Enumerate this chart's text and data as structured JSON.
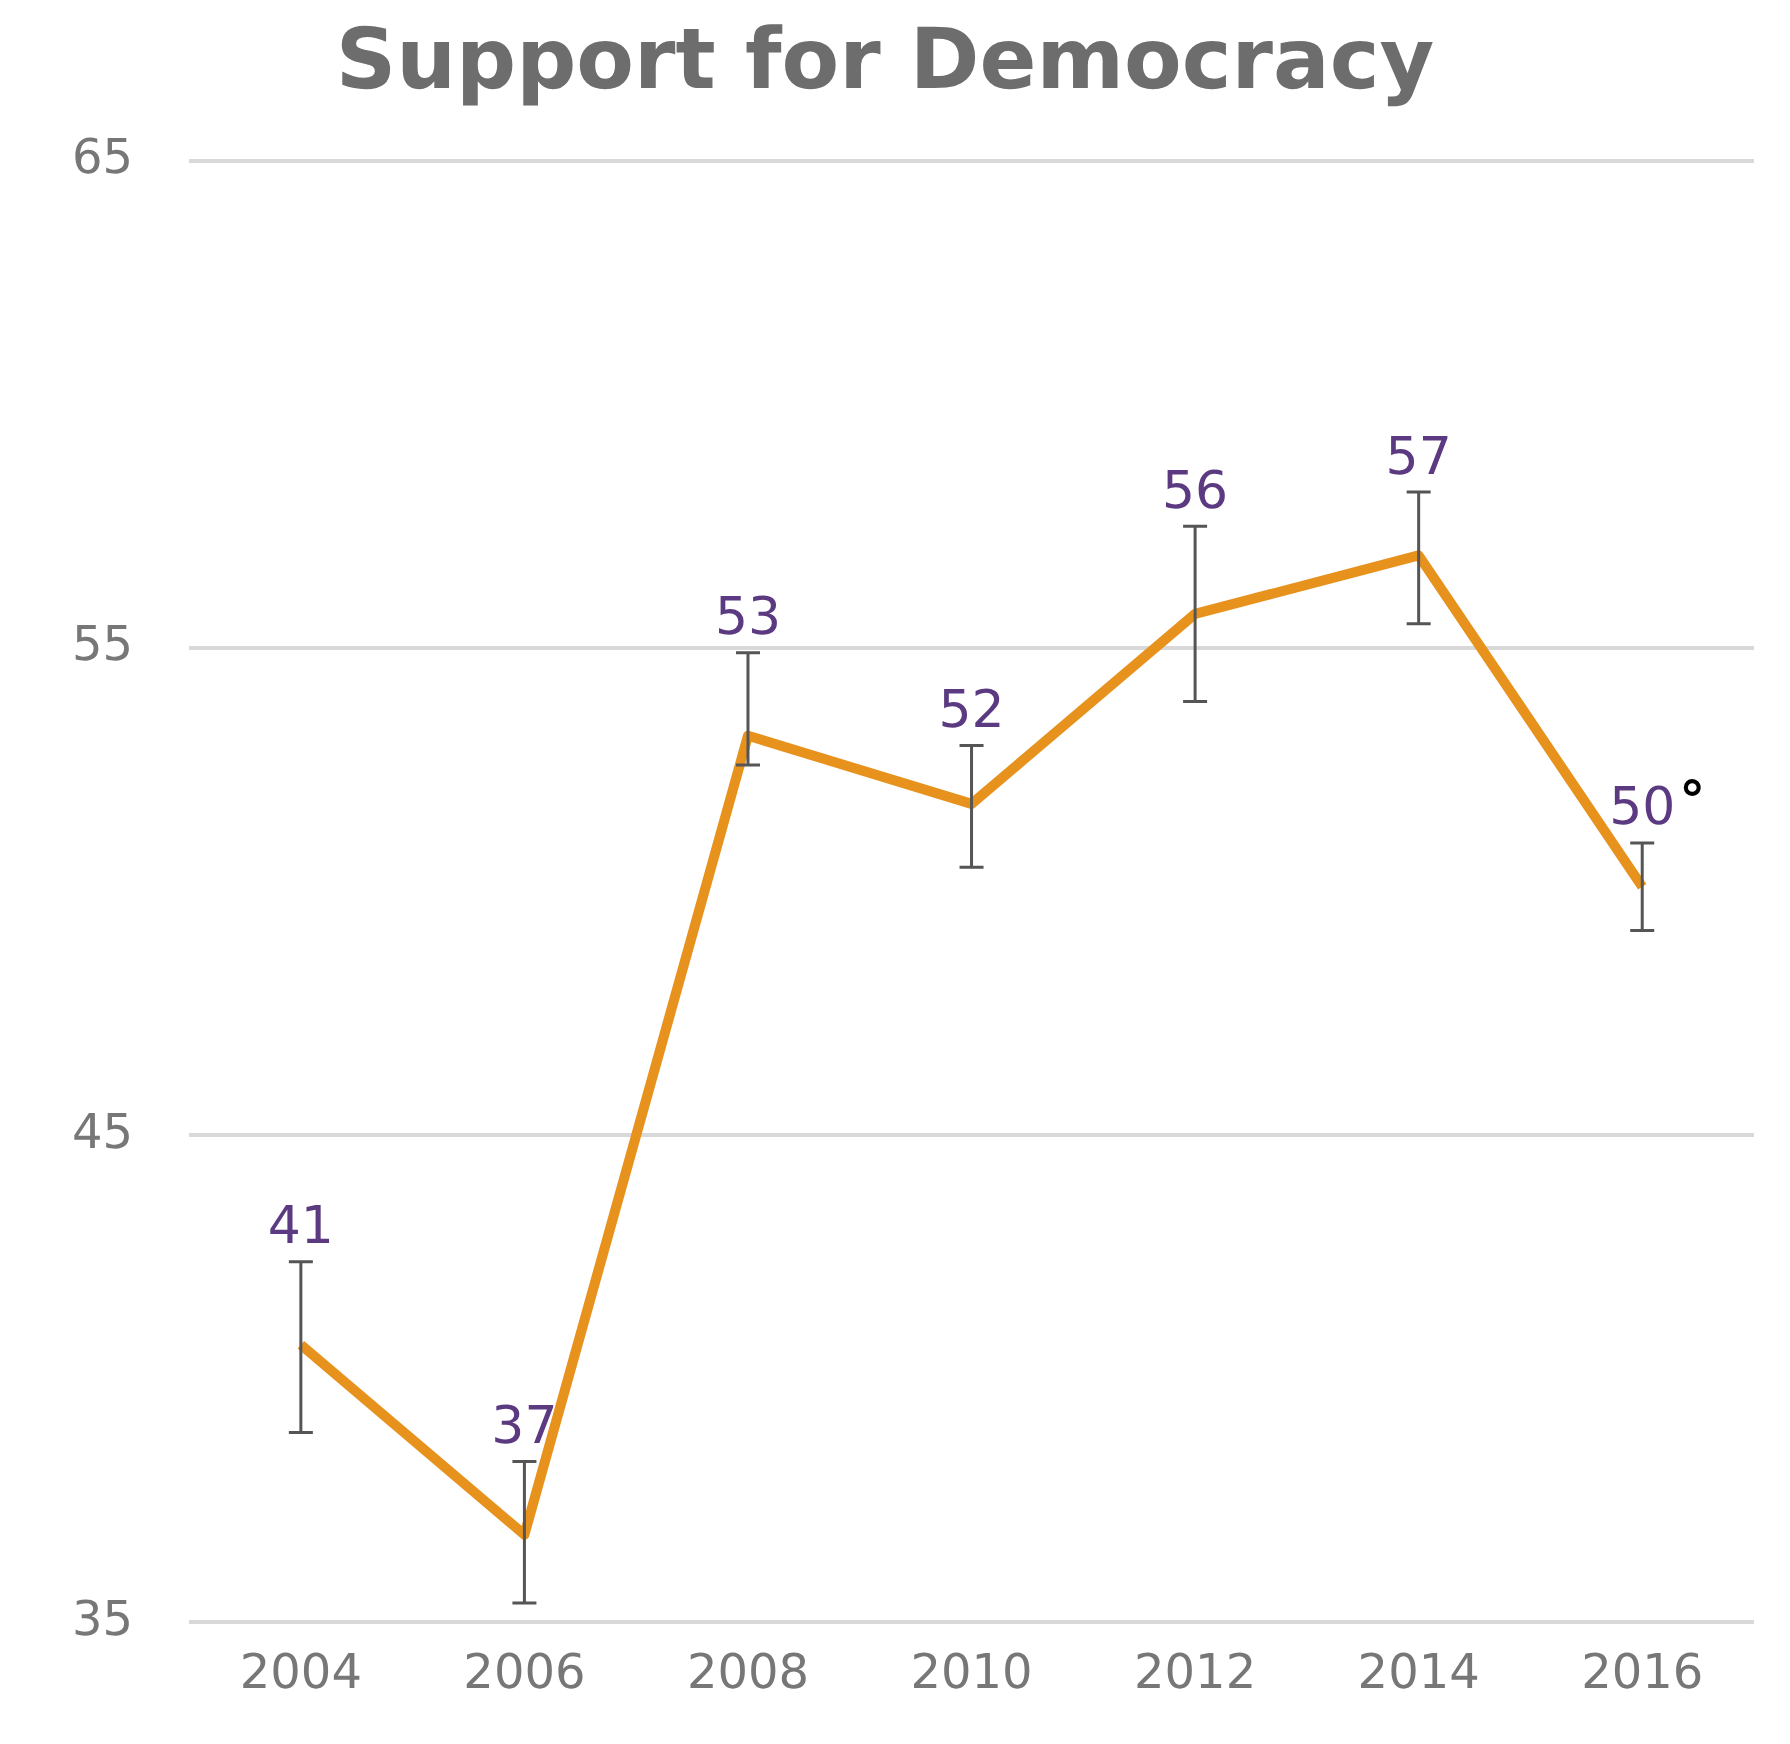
{
  "chart_data": {
    "type": "line",
    "title": "Support for Democracy",
    "categories": [
      "2004",
      "2006",
      "2008",
      "2010",
      "2012",
      "2014",
      "2016"
    ],
    "series": [
      {
        "color": "#e8921e",
        "values": [
          40.7,
          36.8,
          53.2,
          51.8,
          55.7,
          56.9,
          50.1
        ],
        "errors": [
          [
            38.9,
            42.4
          ],
          [
            35.4,
            38.3
          ],
          [
            52.6,
            54.9
          ],
          [
            50.5,
            53.0
          ],
          [
            53.9,
            57.5
          ],
          [
            55.5,
            58.2
          ],
          [
            49.2,
            51.0
          ]
        ],
        "value_labels": [
          "41",
          "37",
          "53",
          "52",
          "56",
          "57",
          "50"
        ]
      }
    ],
    "ylim": [
      35,
      65
    ],
    "yticks": [
      35,
      45,
      55,
      65
    ],
    "grid": "y",
    "legend": false,
    "marker": "none",
    "line_style": "solid",
    "annotations": [
      "°"
    ]
  }
}
